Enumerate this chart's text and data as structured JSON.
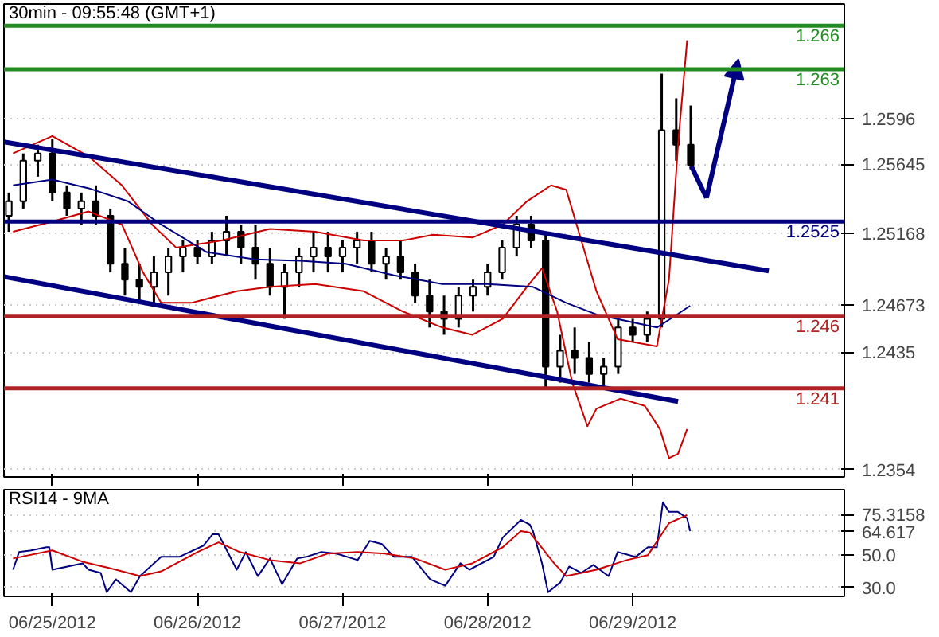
{
  "chart_data": [
    {
      "type": "candlestick",
      "title": "30min - 09:55:48 (GMT+1)",
      "tick_labels": "y",
      "grid": "y",
      "xlim": [
        "2012-06-24T16:00",
        "2012-06-30T11:00"
      ],
      "ylim": [
        1.2349,
        1.2675
      ],
      "xticks": [
        {
          "value": "2012-06-25",
          "label": null
        },
        {
          "value": "2012-06-26",
          "label": null
        },
        {
          "value": "2012-06-27",
          "label": null
        },
        {
          "value": "2012-06-28",
          "label": null
        },
        {
          "value": "2012-06-29",
          "label": null
        }
      ],
      "yticks": [
        {
          "value": 1.2354,
          "label": "1.2354"
        },
        {
          "value": 1.2435,
          "label": "1.2435"
        },
        {
          "value": 1.24673,
          "label": "1.24673"
        },
        {
          "value": 1.25168,
          "label": "1.25168"
        },
        {
          "value": 1.25645,
          "label": "1.25645"
        },
        {
          "value": 1.2596,
          "label": "1.2596"
        }
      ],
      "x": [
        "2012-06-24T16:48",
        "2012-06-24T19:12",
        "2012-06-24T21:36",
        "2012-06-25T00:00",
        "2012-06-25T02:24",
        "2012-06-25T04:48",
        "2012-06-25T07:12",
        "2012-06-25T09:36",
        "2012-06-25T12:00",
        "2012-06-25T14:24",
        "2012-06-25T16:48",
        "2012-06-25T19:12",
        "2012-06-25T21:36",
        "2012-06-26T00:00",
        "2012-06-26T02:24",
        "2012-06-26T04:48",
        "2012-06-26T07:12",
        "2012-06-26T09:36",
        "2012-06-26T12:00",
        "2012-06-26T14:24",
        "2012-06-26T16:48",
        "2012-06-26T19:12",
        "2012-06-26T21:36",
        "2012-06-27T00:00",
        "2012-06-27T02:24",
        "2012-06-27T04:48",
        "2012-06-27T07:12",
        "2012-06-27T09:36",
        "2012-06-27T12:00",
        "2012-06-27T14:24",
        "2012-06-27T16:48",
        "2012-06-27T19:12",
        "2012-06-27T21:36",
        "2012-06-28T00:00",
        "2012-06-28T02:24",
        "2012-06-28T04:48",
        "2012-06-28T07:12",
        "2012-06-28T09:36",
        "2012-06-28T12:00",
        "2012-06-28T14:24",
        "2012-06-28T16:48",
        "2012-06-28T19:12",
        "2012-06-28T21:36",
        "2012-06-29T00:00",
        "2012-06-29T02:24",
        "2012-06-29T04:48",
        "2012-06-29T07:12",
        "2012-06-29T09:36"
      ],
      "ohlc": [
        [
          1.2529,
          1.2545,
          1.2518,
          1.2539
        ],
        [
          1.2539,
          1.2572,
          1.2534,
          1.2567
        ],
        [
          1.2567,
          1.2578,
          1.2556,
          1.2572
        ],
        [
          1.2572,
          1.2582,
          1.2539,
          1.2545
        ],
        [
          1.2545,
          1.255,
          1.2529,
          1.2534
        ],
        [
          1.2534,
          1.2545,
          1.2523,
          1.2539
        ],
        [
          1.2539,
          1.255,
          1.2523,
          1.2529
        ],
        [
          1.2529,
          1.2534,
          1.249,
          1.2496
        ],
        [
          1.2496,
          1.2507,
          1.2474,
          1.2485
        ],
        [
          1.2485,
          1.2496,
          1.2469,
          1.248
        ],
        [
          1.248,
          1.2501,
          1.2469,
          1.249
        ],
        [
          1.249,
          1.2507,
          1.2474,
          1.2501
        ],
        [
          1.2501,
          1.2512,
          1.249,
          1.2507
        ],
        [
          1.2507,
          1.2512,
          1.2496,
          1.2501
        ],
        [
          1.2501,
          1.2518,
          1.2496,
          1.2512
        ],
        [
          1.2512,
          1.2529,
          1.2501,
          1.2518
        ],
        [
          1.2518,
          1.2523,
          1.2496,
          1.2507
        ],
        [
          1.2507,
          1.2523,
          1.2485,
          1.2496
        ],
        [
          1.2496,
          1.2507,
          1.2474,
          1.248
        ],
        [
          1.248,
          1.2496,
          1.2458,
          1.249
        ],
        [
          1.249,
          1.2507,
          1.248,
          1.2501
        ],
        [
          1.2501,
          1.2518,
          1.249,
          1.2507
        ],
        [
          1.2507,
          1.2518,
          1.249,
          1.2501
        ],
        [
          1.2501,
          1.2512,
          1.249,
          1.2507
        ],
        [
          1.2507,
          1.2518,
          1.2496,
          1.2512
        ],
        [
          1.2512,
          1.2518,
          1.249,
          1.2496
        ],
        [
          1.2496,
          1.2507,
          1.2485,
          1.2501
        ],
        [
          1.2501,
          1.2512,
          1.2485,
          1.249
        ],
        [
          1.249,
          1.2496,
          1.2469,
          1.2474
        ],
        [
          1.2474,
          1.2485,
          1.2452,
          1.2463
        ],
        [
          1.2463,
          1.2474,
          1.2447,
          1.2458
        ],
        [
          1.2458,
          1.248,
          1.2452,
          1.2474
        ],
        [
          1.2474,
          1.2485,
          1.2463,
          1.248
        ],
        [
          1.248,
          1.2496,
          1.2474,
          1.249
        ],
        [
          1.249,
          1.2512,
          1.2485,
          1.2507
        ],
        [
          1.2507,
          1.2529,
          1.2501,
          1.2523
        ],
        [
          1.2523,
          1.2529,
          1.2507,
          1.2512
        ],
        [
          1.2512,
          1.2518,
          1.2409,
          1.2425
        ],
        [
          1.2425,
          1.2447,
          1.2414,
          1.2436
        ],
        [
          1.2436,
          1.2452,
          1.242,
          1.2431
        ],
        [
          1.2431,
          1.2442,
          1.2414,
          1.242
        ],
        [
          1.242,
          1.2431,
          1.2409,
          1.2425
        ],
        [
          1.2425,
          1.2458,
          1.242,
          1.2452
        ],
        [
          1.2452,
          1.2458,
          1.2442,
          1.2447
        ],
        [
          1.2447,
          1.2463,
          1.2442,
          1.2458
        ],
        [
          1.2458,
          1.2627,
          1.2452,
          1.2588
        ],
        [
          1.2588,
          1.261,
          1.2567,
          1.2578
        ],
        [
          1.2578,
          1.2605,
          1.2561,
          1.2564
        ]
      ],
      "series": [
        {
          "type": "line",
          "color": "#cc0000",
          "x": [
            "2012-06-24T17:30",
            "2012-06-25T00:00",
            "2012-06-25T06:00",
            "2012-06-25T11:30",
            "2012-06-25T16:30",
            "2012-06-25T20:30",
            "2012-06-26T04:00",
            "2012-06-26T12:00",
            "2012-06-26T19:30",
            "2012-06-27T03:30",
            "2012-06-27T10:00",
            "2012-06-27T15:00",
            "2012-06-27T21:30",
            "2012-06-28T02:30",
            "2012-06-28T06:30",
            "2012-06-28T10:30",
            "2012-06-28T13:00",
            "2012-06-28T15:30",
            "2012-06-28T18:00",
            "2012-06-28T21:30",
            "2012-06-29T04:00",
            "2012-06-29T06:00",
            "2012-06-29T07:30",
            "2012-06-29T09:00"
          ],
          "values": [
            1.2572,
            1.2584,
            1.257,
            1.255,
            1.2523,
            1.2507,
            1.2512,
            1.252,
            1.2518,
            1.2512,
            1.2512,
            1.2516,
            1.2514,
            1.2523,
            1.2539,
            1.255,
            1.2547,
            1.2512,
            1.2477,
            1.2444,
            1.2439,
            1.2485,
            1.2578,
            1.265
          ]
        },
        {
          "type": "line",
          "color": "#cc0000",
          "x": [
            "2012-06-24T17:30",
            "2012-06-25T00:00",
            "2012-06-25T06:00",
            "2012-06-25T11:30",
            "2012-06-25T15:00",
            "2012-06-25T18:00",
            "2012-06-25T23:00",
            "2012-06-26T06:30",
            "2012-06-26T12:00",
            "2012-06-26T19:30",
            "2012-06-27T03:30",
            "2012-06-27T10:00",
            "2012-06-27T16:30",
            "2012-06-27T21:30",
            "2012-06-28T02:30",
            "2012-06-28T06:30",
            "2012-06-28T09:00",
            "2012-06-28T11:30",
            "2012-06-28T14:00",
            "2012-06-28T16:30",
            "2012-06-28T18:00",
            "2012-06-28T22:00",
            "2012-06-29T02:00",
            "2012-06-29T04:30",
            "2012-06-29T06:00",
            "2012-06-29T07:30",
            "2012-06-29T09:00"
          ],
          "values": [
            1.2518,
            1.2525,
            1.2532,
            1.2523,
            1.249,
            1.2469,
            1.2469,
            1.2477,
            1.248,
            1.2482,
            1.2477,
            1.2463,
            1.2452,
            1.2447,
            1.2458,
            1.248,
            1.2493,
            1.2463,
            1.2414,
            1.2384,
            1.2396,
            1.2403,
            1.2398,
            1.2382,
            1.2362,
            1.2365,
            1.2382
          ]
        },
        {
          "type": "line",
          "color": "#000080",
          "x": [
            "2012-06-24T17:30",
            "2012-06-25T00:00",
            "2012-06-25T06:00",
            "2012-06-25T12:30",
            "2012-06-25T18:00",
            "2012-06-26T01:30",
            "2012-06-26T09:30",
            "2012-06-26T17:00",
            "2012-06-27T00:30",
            "2012-06-27T08:30",
            "2012-06-27T16:30",
            "2012-06-28T00:00",
            "2012-06-28T07:30",
            "2012-06-28T13:00",
            "2012-06-28T18:00",
            "2012-06-28T23:30",
            "2012-06-29T04:00",
            "2012-06-29T07:00",
            "2012-06-29T09:30"
          ],
          "values": [
            1.255,
            1.2554,
            1.2548,
            1.2539,
            1.2523,
            1.2504,
            1.2499,
            1.2498,
            1.2496,
            1.2488,
            1.2482,
            1.2482,
            1.248,
            1.2469,
            1.2461,
            1.2456,
            1.2452,
            1.246,
            1.2467
          ]
        },
        {
          "type": "line",
          "color": "#000080",
          "x": [
            "2012-06-24T16:00",
            "2012-06-29T22:30"
          ],
          "values": [
            1.258,
            1.2491
          ]
        },
        {
          "type": "line",
          "color": "#000080",
          "x": [
            "2012-06-24T16:00",
            "2012-06-29T07:30"
          ],
          "values": [
            1.2487,
            1.2401
          ]
        }
      ],
      "ref_lines": [
        {
          "axis": "y",
          "value": 1.266,
          "label": "1.266",
          "color": "#228b22"
        },
        {
          "axis": "y",
          "value": 1.263,
          "label": "1.263",
          "color": "#228b22"
        },
        {
          "axis": "y",
          "value": 1.2525,
          "label": "1.2525",
          "color": "#000080"
        },
        {
          "axis": "y",
          "value": 1.246,
          "label": "1.246",
          "color": "#b22222"
        },
        {
          "axis": "y",
          "value": 1.241,
          "label": "1.241",
          "color": "#b22222"
        }
      ]
    },
    {
      "type": "line",
      "title": "RSI14 - 9MA",
      "grid": "y",
      "xlim": [
        "2012-06-24T16:00",
        "2012-06-30T11:00"
      ],
      "ylim": [
        24.4,
        90.8
      ],
      "xticks": [
        {
          "value": "2012-06-25",
          "label": "06/25/2012"
        },
        {
          "value": "2012-06-26",
          "label": "06/26/2012"
        },
        {
          "value": "2012-06-27",
          "label": "06/27/2012"
        },
        {
          "value": "2012-06-28",
          "label": "06/28/2012"
        },
        {
          "value": "2012-06-29",
          "label": "06/29/2012"
        }
      ],
      "yticks": [
        {
          "value": 30,
          "label": "30.0"
        },
        {
          "value": 50,
          "label": "50.0"
        },
        {
          "value": 64.617,
          "label": "64.617"
        },
        {
          "value": 75.3158,
          "label": "75.3158"
        }
      ],
      "series": [
        {
          "color": "#000080",
          "x": [
            "2012-06-24T17:30",
            "2012-06-24T18:30",
            "2012-06-24T20:30",
            "2012-06-24T23:00",
            "2012-06-24T23:30",
            "2012-06-25T00:00",
            "2012-06-25T02:30",
            "2012-06-25T05:00",
            "2012-06-25T06:00",
            "2012-06-25T08:00",
            "2012-06-25T09:00",
            "2012-06-25T10:30",
            "2012-06-25T13:00",
            "2012-06-25T14:30",
            "2012-06-25T18:00",
            "2012-06-25T21:00",
            "2012-06-26T01:00",
            "2012-06-26T02:30",
            "2012-06-26T03:30",
            "2012-06-26T05:00",
            "2012-06-26T06:30",
            "2012-06-26T08:00",
            "2012-06-26T10:00",
            "2012-06-26T12:00",
            "2012-06-26T14:00",
            "2012-06-26T16:30",
            "2012-06-26T18:00",
            "2012-06-26T20:30",
            "2012-06-26T23:00",
            "2012-06-27T02:30",
            "2012-06-27T04:30",
            "2012-06-27T06:30",
            "2012-06-27T08:30",
            "2012-06-27T11:30",
            "2012-06-27T14:30",
            "2012-06-27T17:00",
            "2012-06-27T19:30",
            "2012-06-27T21:00",
            "2012-06-28T01:00",
            "2012-06-28T02:30",
            "2012-06-28T05:30",
            "2012-06-28T07:00",
            "2012-06-28T07:30",
            "2012-06-28T09:00",
            "2012-06-28T10:00",
            "2012-06-28T12:00",
            "2012-06-28T13:30",
            "2012-06-28T15:30",
            "2012-06-28T17:30",
            "2012-06-28T20:00",
            "2012-06-28T21:30",
            "2012-06-29T00:30",
            "2012-06-29T02:30",
            "2012-06-29T04:00",
            "2012-06-29T05:00",
            "2012-06-29T06:00",
            "2012-06-29T07:30",
            "2012-06-29T09:00",
            "2012-06-29T09:30"
          ],
          "values": [
            41,
            52,
            53,
            55,
            55,
            41,
            43,
            45,
            41,
            39,
            27,
            35,
            27,
            37,
            49,
            49,
            56,
            63,
            63,
            52,
            41,
            52,
            37,
            48,
            32,
            48,
            49,
            52,
            51,
            47,
            59,
            57,
            49,
            49,
            35,
            31,
            45,
            41,
            49,
            61,
            72,
            69,
            65,
            45,
            27,
            33,
            43,
            39,
            44,
            37,
            52,
            49,
            55,
            55,
            83,
            77,
            77,
            73,
            65
          ]
        },
        {
          "color": "#cc0000",
          "x": [
            "2012-06-24T17:30",
            "2012-06-25T00:00",
            "2012-06-25T05:00",
            "2012-06-25T09:30",
            "2012-06-25T14:30",
            "2012-06-25T18:00",
            "2012-06-26T00:00",
            "2012-06-26T03:30",
            "2012-06-26T07:00",
            "2012-06-26T12:00",
            "2012-06-26T17:00",
            "2012-06-26T21:30",
            "2012-06-27T02:30",
            "2012-06-27T07:00",
            "2012-06-27T12:00",
            "2012-06-27T17:00",
            "2012-06-27T21:30",
            "2012-06-28T02:30",
            "2012-06-28T05:30",
            "2012-06-28T07:00",
            "2012-06-28T11:00",
            "2012-06-28T13:00",
            "2012-06-28T18:00",
            "2012-06-28T23:00",
            "2012-06-29T02:30",
            "2012-06-29T06:00",
            "2012-06-29T09:00"
          ],
          "values": [
            48,
            53,
            46,
            42,
            37,
            40,
            52,
            58,
            52,
            47,
            45,
            51,
            52,
            51,
            48,
            41,
            45,
            55,
            65,
            64,
            45,
            37,
            41,
            47,
            50,
            70,
            75
          ]
        }
      ]
    }
  ]
}
